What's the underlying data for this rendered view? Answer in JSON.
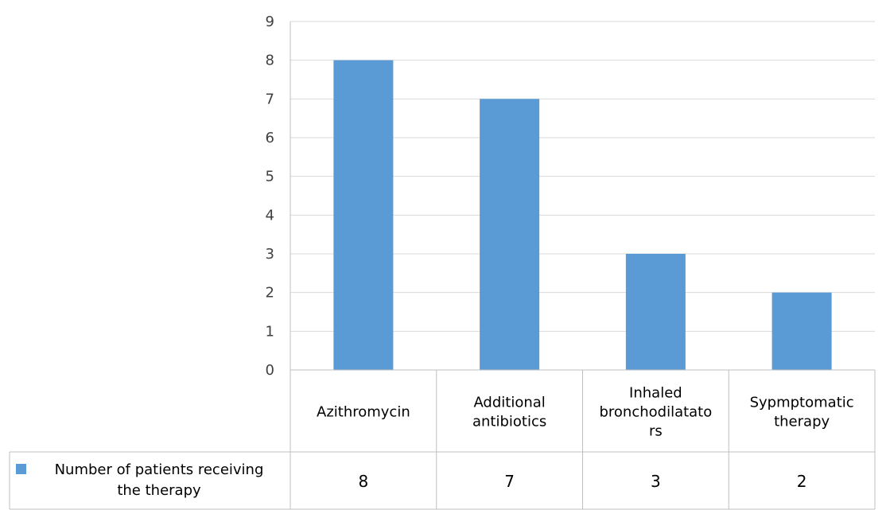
{
  "chart_data": {
    "type": "bar",
    "categories": [
      [
        "Azithromycin"
      ],
      [
        "Additional",
        "antibiotics"
      ],
      [
        "Inhaled",
        "bronchodilatato",
        "rs"
      ],
      [
        "Sypmptomatic",
        "therapy"
      ]
    ],
    "series": [
      {
        "name": [
          "Number of patients receiving",
          "the therapy"
        ],
        "values": [
          8,
          7,
          3,
          2
        ],
        "color": "#5b9bd5"
      }
    ],
    "ylim": [
      0,
      9
    ],
    "yticks": [
      0,
      1,
      2,
      3,
      4,
      5,
      6,
      7,
      8,
      9
    ],
    "grid": true,
    "legend": "data-table-row"
  }
}
